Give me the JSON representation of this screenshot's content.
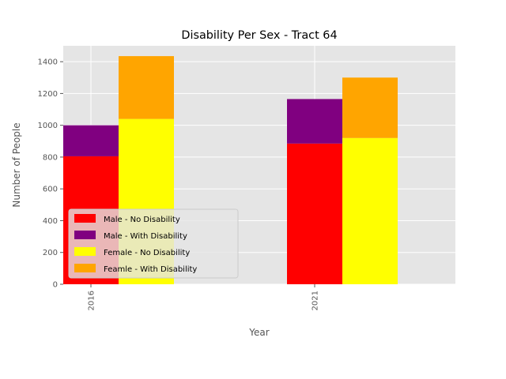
{
  "chart_data": {
    "type": "bar",
    "stacked": true,
    "title": "Disability Per Sex - Tract 64",
    "xlabel": "Year",
    "ylabel": "Number of People",
    "categories": [
      "2016",
      "2021"
    ],
    "ylim": [
      0,
      1500
    ],
    "yticks": [
      0,
      200,
      400,
      600,
      800,
      1000,
      1200,
      1400
    ],
    "grid": true,
    "legend_position": "lower-left",
    "groups": [
      {
        "series": [
          {
            "name": "Male - No Disability",
            "values": [
              805,
              885
            ],
            "color": "#ff0000"
          },
          {
            "name": "Male - With Disability",
            "values": [
              195,
              280
            ],
            "color": "#800080"
          }
        ]
      },
      {
        "series": [
          {
            "name": "Female - No Disability",
            "values": [
              1040,
              920
            ],
            "color": "#ffff00"
          },
          {
            "name": "Feamle - With Disability",
            "values": [
              395,
              380
            ],
            "color": "#ffa500"
          }
        ]
      }
    ]
  }
}
